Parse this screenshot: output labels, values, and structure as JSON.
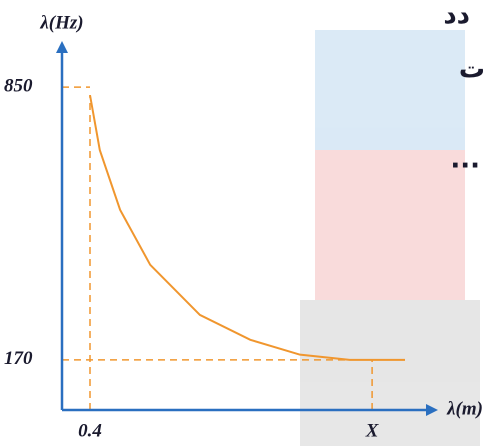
{
  "chart_data": {
    "type": "line",
    "y_label": "λ(Hz)",
    "x_label": "λ(m)",
    "x": [
      0.4,
      0.54,
      0.83,
      1.26,
      1.97,
      2.69,
      3.4,
      4.11,
      4.9
    ],
    "series": [
      {
        "color": "#f0962e",
        "values": [
          830,
          693,
          544,
          407,
          282,
          220,
          183,
          170,
          170
        ]
      }
    ],
    "xlim": [
      0,
      5.2
    ],
    "ylim": [
      45,
      940
    ],
    "xticks": [
      0.4,
      {
        "value": 4.43,
        "label": "X"
      }
    ],
    "yticks": [
      170,
      850
    ],
    "axis_color": "#2a6fc0",
    "guide_color": "#f0962e",
    "annotations": [
      "دد",
      "ت",
      "..."
    ]
  }
}
